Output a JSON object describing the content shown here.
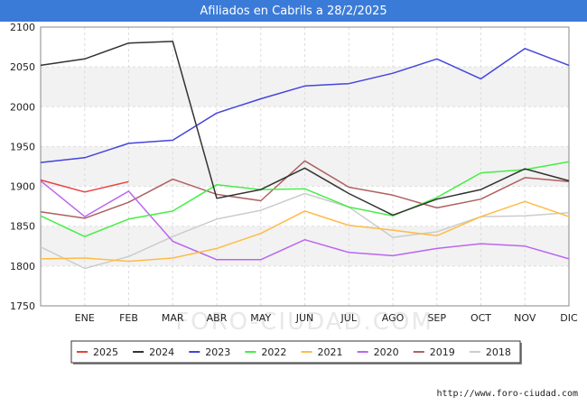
{
  "title": "Afiliados en Cabrils a 28/2/2025",
  "source_url": "http://www.foro-ciudad.com",
  "watermark": "FORO-CIUDAD.COM",
  "chart_data": {
    "type": "line",
    "title": "Afiliados en Cabrils a 28/2/2025",
    "xlabel": "",
    "ylabel": "",
    "categories": [
      "",
      "ENE",
      "FEB",
      "MAR",
      "ABR",
      "MAY",
      "JUN",
      "JUL",
      "AGO",
      "SEP",
      "OCT",
      "NOV",
      "DIC"
    ],
    "ylim": [
      1750,
      2100
    ],
    "yticks": [
      1750,
      1800,
      1850,
      1900,
      1950,
      2000,
      2050,
      2100
    ],
    "grid": true,
    "legend_position": "bottom",
    "series": [
      {
        "name": "2025",
        "color": "#e84040",
        "values": [
          1908,
          1893,
          1906,
          null,
          null,
          null,
          null,
          null,
          null,
          null,
          null,
          null,
          null
        ]
      },
      {
        "name": "2024",
        "color": "#333333",
        "values": [
          2052,
          2060,
          2080,
          2082,
          1885,
          1896,
          1923,
          1891,
          1864,
          1884,
          1896,
          1922,
          1907
        ]
      },
      {
        "name": "2023",
        "color": "#4444dd",
        "values": [
          1930,
          1936,
          1954,
          1958,
          1992,
          2010,
          2026,
          2029,
          2042,
          2060,
          2035,
          2073,
          2052
        ]
      },
      {
        "name": "2022",
        "color": "#44ee44",
        "values": [
          1863,
          1837,
          1859,
          1869,
          1902,
          1896,
          1897,
          1874,
          1863,
          1886,
          1917,
          1921,
          1931
        ]
      },
      {
        "name": "2021",
        "color": "#ffbb44",
        "values": [
          1809,
          1810,
          1806,
          1810,
          1822,
          1841,
          1869,
          1851,
          1845,
          1838,
          1862,
          1881,
          1862
        ]
      },
      {
        "name": "2020",
        "color": "#bb66ee",
        "values": [
          1907,
          1862,
          1894,
          1831,
          1808,
          1808,
          1833,
          1817,
          1813,
          1822,
          1828,
          1825,
          1809
        ]
      },
      {
        "name": "2019",
        "color": "#b06060",
        "values": [
          1868,
          1860,
          1880,
          1909,
          1890,
          1882,
          1932,
          1899,
          1889,
          1873,
          1884,
          1911,
          1906
        ]
      },
      {
        "name": "2018",
        "color": "#cccccc",
        "values": [
          1824,
          1797,
          1812,
          1837,
          1859,
          1870,
          1891,
          1874,
          1836,
          1843,
          1862,
          1863,
          1867
        ]
      }
    ]
  }
}
